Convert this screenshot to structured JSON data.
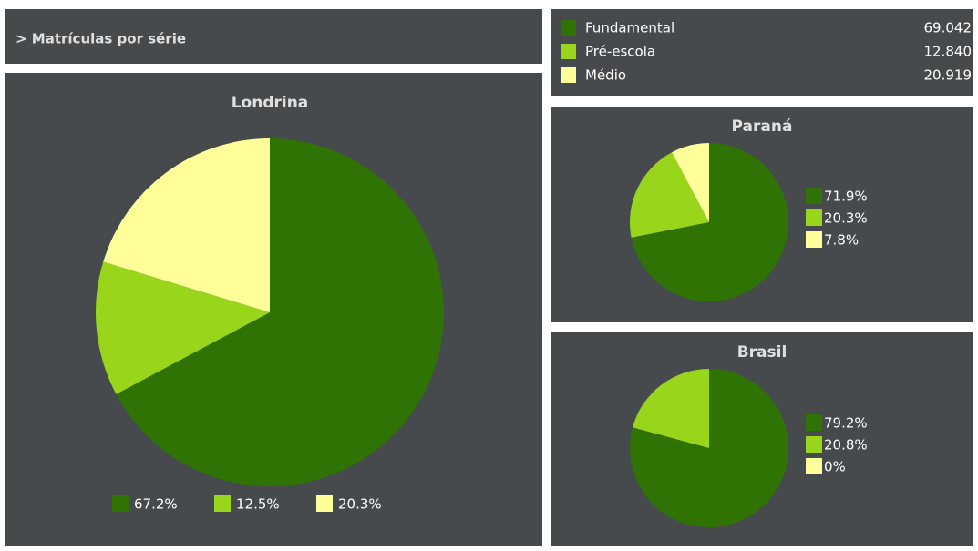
{
  "panel_title": "> Matrículas por série",
  "legend": {
    "items": [
      {
        "name": "Fundamental",
        "color": "#2e7304",
        "count": "69.042"
      },
      {
        "name": "Pré-escola",
        "color": "#99d51a",
        "count": "12.840"
      },
      {
        "name": "Médio",
        "color": "#ffff99",
        "count": "20.919"
      }
    ]
  },
  "chart_data": [
    {
      "type": "pie",
      "title": "Londrina",
      "values": [
        67.2,
        12.5,
        20.3
      ],
      "value_labels": [
        "67.2%",
        "12.5%",
        "20.3%"
      ],
      "colors": [
        "#2e7304",
        "#99d51a",
        "#ffff99"
      ],
      "legend": "bottom"
    },
    {
      "type": "pie",
      "title": "Paraná",
      "values": [
        71.9,
        20.3,
        7.8
      ],
      "value_labels": [
        "71.9%",
        "20.3%",
        "7.8%"
      ],
      "colors": [
        "#2e7304",
        "#99d51a",
        "#ffff99"
      ],
      "legend": "right"
    },
    {
      "type": "pie",
      "title": "Brasil",
      "values": [
        79.2,
        20.8,
        0
      ],
      "value_labels": [
        "79.2%",
        "20.8%",
        "0%"
      ],
      "colors": [
        "#2e7304",
        "#99d51a",
        "#ffff99"
      ],
      "legend": "right"
    }
  ]
}
